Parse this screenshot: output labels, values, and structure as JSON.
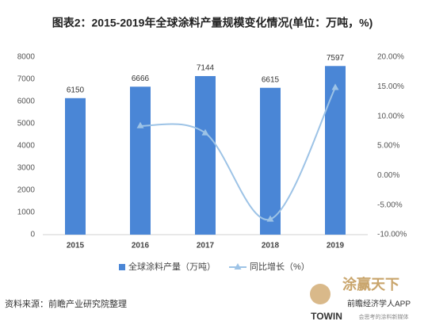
{
  "chart_data": {
    "type": "bar",
    "title": "图表2：2015-2019年全球涂料产量规模变化情况(单位：万吨，%)",
    "categories": [
      "2015",
      "2016",
      "2017",
      "2018",
      "2019"
    ],
    "series": [
      {
        "name": "全球涂料产量（万吨）",
        "color": "#4a86d6",
        "type": "bar",
        "values": [
          6150,
          6666,
          7144,
          6615,
          7597
        ]
      },
      {
        "name": "同比增长（%）",
        "color": "#9dc3e6",
        "type": "line",
        "axis": "y2",
        "values": [
          null,
          8.39,
          7.17,
          -7.4,
          14.84
        ]
      }
    ],
    "ylim": [
      0,
      8000
    ],
    "yticks": [
      0,
      1000,
      2000,
      3000,
      4000,
      5000,
      6000,
      7000,
      8000
    ],
    "y2lim": [
      -10,
      20
    ],
    "y2ticks": [
      {
        "value": -10,
        "label": "-10.00%"
      },
      {
        "value": -5,
        "label": "-5.00%"
      },
      {
        "value": 0,
        "label": "0.00%"
      },
      {
        "value": 5,
        "label": "5.00%"
      },
      {
        "value": 10,
        "label": "10.00%"
      },
      {
        "value": 15,
        "label": "15.00%"
      },
      {
        "value": 20,
        "label": "20.00%"
      }
    ],
    "legend": "bottom",
    "source": "资料来源：前瞻产业研究院整理",
    "watermarks": [
      "涂赢天下",
      "前瞻经济学人APP",
      "TOWIN",
      "会思考的涂料新媒体"
    ]
  }
}
